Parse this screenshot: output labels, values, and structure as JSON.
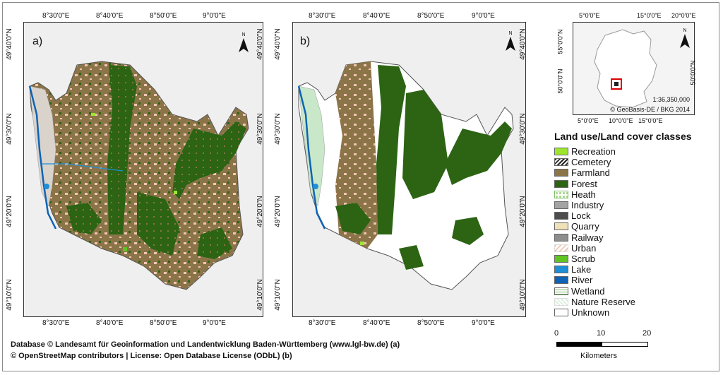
{
  "map_a": {
    "label": "a)",
    "lon_ticks": [
      "8°30'0\"E",
      "8°40'0\"E",
      "8°50'0\"E",
      "9°0'0\"E"
    ],
    "lat_ticks": [
      "49°40'0\"N",
      "49°30'0\"N",
      "49°20'0\"N",
      "49°10'0\"N"
    ]
  },
  "map_b": {
    "label": "b)",
    "lon_ticks": [
      "8°30'0\"E",
      "8°40'0\"E",
      "8°50'0\"E",
      "9°0'0\"E"
    ],
    "lat_ticks": [
      "49°40'0\"N",
      "49°30'0\"N",
      "49°20'0\"N",
      "49°10'0\"N"
    ]
  },
  "north_arrow": {
    "letter": "N"
  },
  "inset": {
    "lon_ticks_top": [
      "5°0'0\"E",
      "15°0'0\"E",
      "20°0'0\"E"
    ],
    "lon_ticks_bottom": [
      "5°0'0\"E",
      "10°0'0\"E",
      "15°0'0\"E"
    ],
    "lat_ticks_left": [
      "55°0'0\"N",
      "50°0'0\"N"
    ],
    "lat_ticks_right": [
      "50°0'0\"N"
    ],
    "scale": "1:36,350,000",
    "copyright": "© GeoBasis-DE / BKG 2014"
  },
  "legend": {
    "title": "Land use/Land cover classes",
    "items": [
      {
        "label": "Recreation",
        "color": "#9ee62e",
        "style": "solid"
      },
      {
        "label": "Cemetery",
        "color": "#222222",
        "style": "hatch"
      },
      {
        "label": "Farmland",
        "color": "#8b7448",
        "style": "solid"
      },
      {
        "label": "Forest",
        "color": "#2c6413",
        "style": "solid"
      },
      {
        "label": "Heath",
        "color": "#a7d98a",
        "style": "dots"
      },
      {
        "label": "Industry",
        "color": "#a3a3a3",
        "style": "solid"
      },
      {
        "label": "Lock",
        "color": "#4d4d4d",
        "style": "solid"
      },
      {
        "label": "Quarry",
        "color": "#efe1b8",
        "style": "solid"
      },
      {
        "label": "Railway",
        "color": "#8d8d8d",
        "style": "solid"
      },
      {
        "label": "Urban",
        "color": "#f2c6b4",
        "style": "hatch-light"
      },
      {
        "label": "Scrub",
        "color": "#5fc321",
        "style": "solid"
      },
      {
        "label": "Lake",
        "color": "#1c8fd6",
        "style": "solid"
      },
      {
        "label": "River",
        "color": "#0f63b5",
        "style": "solid"
      },
      {
        "label": "Wetland",
        "color": "#7fbf6a",
        "style": "marsh"
      },
      {
        "label": "Nature Reserve",
        "color": "#c9e8c9",
        "style": "hatch-green"
      },
      {
        "label": "Unknown",
        "color": "#ffffff",
        "style": "solid"
      }
    ]
  },
  "scalebar": {
    "ticks": [
      "0",
      "10",
      "20"
    ],
    "unit": "Kilometers"
  },
  "credits": [
    "Database © Landesamt für Geoinformation und Landentwicklung Baden-Württemberg (www.lgl-bw.de) (a)",
    "© OpenStreetMap contributors | License: Open Database License (ODbL) (b)"
  ]
}
